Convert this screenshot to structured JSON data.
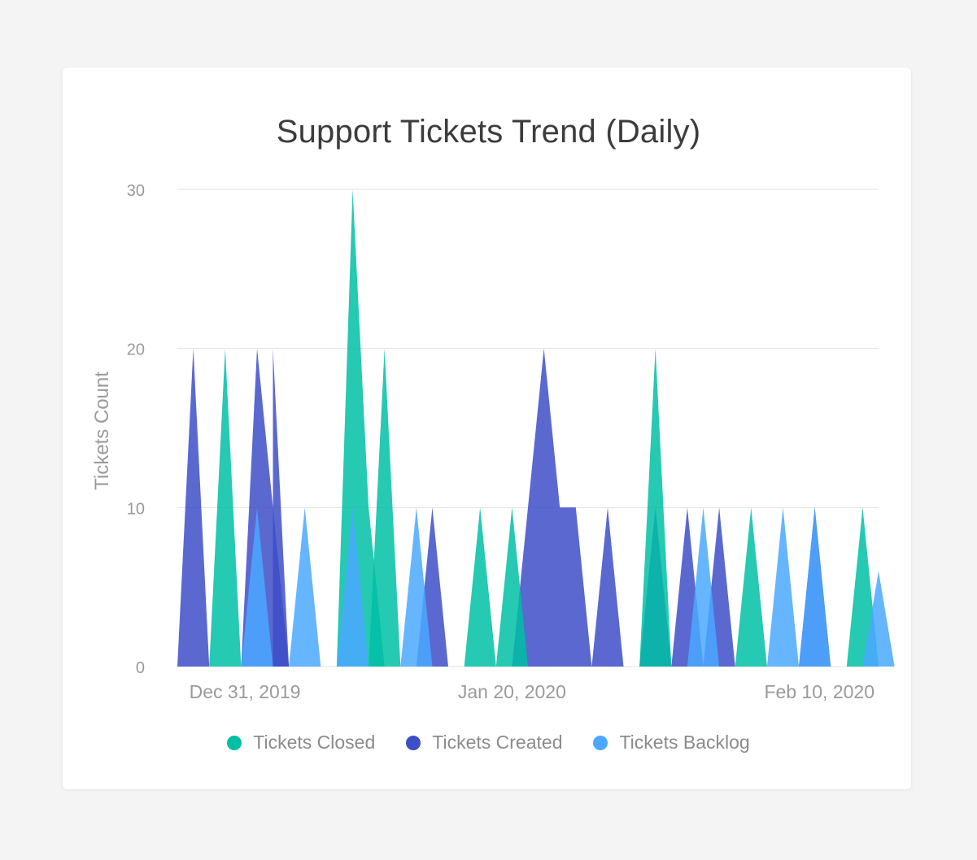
{
  "chart_data": {
    "type": "area",
    "title": "Support Tickets Trend (Daily)",
    "xlabel": "",
    "ylabel": "Tickets Count",
    "ylim": [
      0,
      30
    ],
    "yticks": [
      0,
      10,
      20,
      30
    ],
    "xlim": [
      "2019-12-30",
      "2020-02-12"
    ],
    "xticks": [
      {
        "date": "2019-12-31",
        "label": "Dec 31, 2019"
      },
      {
        "date": "2020-01-20",
        "label": "Jan 20, 2020"
      },
      {
        "date": "2020-02-10",
        "label": "Feb 10, 2020"
      }
    ],
    "grid": true,
    "legend_position": "bottom",
    "series": [
      {
        "name": "Tickets Created",
        "color": "#3d4ec8",
        "points": [
          [
            "2019-12-30",
            0
          ],
          [
            "2019-12-31",
            20
          ],
          [
            "2020-01-01",
            0
          ],
          [
            "2020-01-03",
            0
          ],
          [
            "2020-01-04",
            20
          ],
          [
            "2020-01-05",
            10
          ],
          [
            "2020-01-06",
            0
          ],
          [
            "2020-01-05",
            0
          ],
          [
            "2020-01-05",
            20
          ],
          [
            "2020-01-06",
            0
          ],
          [
            "2020-01-14",
            0
          ],
          [
            "2020-01-15",
            10
          ],
          [
            "2020-01-16",
            0
          ],
          [
            "2020-01-20",
            0
          ],
          [
            "2020-01-22",
            20
          ],
          [
            "2020-01-23",
            10
          ],
          [
            "2020-01-24",
            10
          ],
          [
            "2020-01-25",
            0
          ],
          [
            "2020-01-25",
            0
          ],
          [
            "2020-01-26",
            10
          ],
          [
            "2020-01-27",
            0
          ],
          [
            "2020-01-28",
            0
          ],
          [
            "2020-01-29",
            10
          ],
          [
            "2020-01-30",
            0
          ],
          [
            "2020-01-30",
            0
          ],
          [
            "2020-01-31",
            10
          ],
          [
            "2020-02-01",
            0
          ],
          [
            "2020-02-01",
            0
          ],
          [
            "2020-02-02",
            10
          ],
          [
            "2020-02-03",
            0
          ],
          [
            "2020-02-07",
            0
          ],
          [
            "2020-02-08",
            10
          ],
          [
            "2020-02-09",
            0
          ]
        ]
      },
      {
        "name": "Tickets Closed",
        "color": "#00bfa5",
        "points": [
          [
            "2020-01-01",
            0
          ],
          [
            "2020-01-02",
            20
          ],
          [
            "2020-01-03",
            0
          ],
          [
            "2020-01-09",
            0
          ],
          [
            "2020-01-10",
            30
          ],
          [
            "2020-01-11",
            10
          ],
          [
            "2020-01-12",
            0
          ],
          [
            "2020-01-11",
            0
          ],
          [
            "2020-01-12",
            20
          ],
          [
            "2020-01-13",
            0
          ],
          [
            "2020-01-17",
            0
          ],
          [
            "2020-01-18",
            10
          ],
          [
            "2020-01-19",
            0
          ],
          [
            "2020-01-19",
            0
          ],
          [
            "2020-01-20",
            10
          ],
          [
            "2020-01-21",
            0
          ],
          [
            "2020-01-28",
            0
          ],
          [
            "2020-01-29",
            20
          ],
          [
            "2020-01-30",
            0
          ],
          [
            "2020-02-03",
            0
          ],
          [
            "2020-02-04",
            10
          ],
          [
            "2020-02-05",
            0
          ],
          [
            "2020-02-10",
            0
          ],
          [
            "2020-02-11",
            10
          ],
          [
            "2020-02-12",
            0
          ]
        ]
      },
      {
        "name": "Tickets Backlog",
        "color": "#4aa8ff",
        "points": [
          [
            "2020-01-03",
            0
          ],
          [
            "2020-01-04",
            10
          ],
          [
            "2020-01-05",
            0
          ],
          [
            "2020-01-06",
            0
          ],
          [
            "2020-01-07",
            10
          ],
          [
            "2020-01-08",
            0
          ],
          [
            "2020-01-09",
            0
          ],
          [
            "2020-01-10",
            10
          ],
          [
            "2020-01-11",
            0
          ],
          [
            "2020-01-13",
            0
          ],
          [
            "2020-01-14",
            10
          ],
          [
            "2020-01-15",
            0
          ],
          [
            "2020-01-31",
            0
          ],
          [
            "2020-02-01",
            10
          ],
          [
            "2020-02-02",
            0
          ],
          [
            "2020-02-05",
            0
          ],
          [
            "2020-02-06",
            10
          ],
          [
            "2020-02-07",
            0
          ],
          [
            "2020-02-07",
            0
          ],
          [
            "2020-02-08",
            10
          ],
          [
            "2020-02-09",
            0
          ],
          [
            "2020-02-11",
            0
          ],
          [
            "2020-02-12",
            6
          ],
          [
            "2020-02-13",
            0
          ]
        ]
      }
    ]
  },
  "legend": {
    "items": [
      {
        "label": "Tickets Closed",
        "color": "#00bfa5"
      },
      {
        "label": "Tickets Created",
        "color": "#3d4ec8"
      },
      {
        "label": "Tickets Backlog",
        "color": "#4aa8ff"
      }
    ]
  }
}
